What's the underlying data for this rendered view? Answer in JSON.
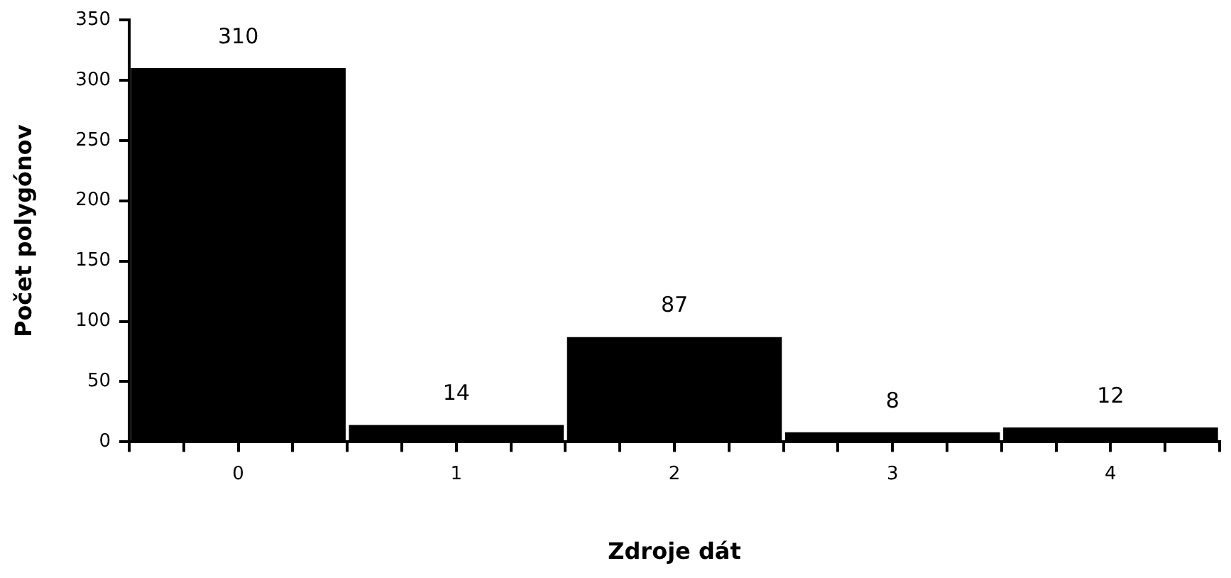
{
  "chart_data": {
    "type": "histogram",
    "xlabel": "Zdroje dát",
    "ylabel": "Počet polygónov",
    "bins": [
      -0.5,
      0.5,
      1.5,
      2.5,
      3.5,
      4.5
    ],
    "values": [
      310,
      14,
      87,
      8,
      12
    ],
    "color": "#000000",
    "xlim": [
      -0.5,
      4.5
    ],
    "xticks": [
      {
        "value": -0.5,
        "label": null
      },
      {
        "value": -0.25,
        "label": null
      },
      0,
      {
        "value": 0.25,
        "label": null
      },
      {
        "value": 0.5,
        "label": null
      },
      {
        "value": 0.75,
        "label": null
      },
      1,
      {
        "value": 1.25,
        "label": null
      },
      {
        "value": 1.5,
        "label": null
      },
      {
        "value": 1.75,
        "label": null
      },
      2,
      {
        "value": 2.25,
        "label": null
      },
      {
        "value": 2.5,
        "label": null
      },
      {
        "value": 2.75,
        "label": null
      },
      3,
      {
        "value": 3.25,
        "label": null
      },
      {
        "value": 3.5,
        "label": null
      },
      {
        "value": 3.75,
        "label": null
      },
      4,
      {
        "value": 4.25,
        "label": null
      },
      {
        "value": 4.5,
        "label": null
      }
    ],
    "ylim": [
      0,
      350
    ],
    "yticks": [
      0,
      50,
      100,
      150,
      200,
      250,
      300,
      350
    ],
    "grid": false,
    "legend": false,
    "data_labels": true
  }
}
